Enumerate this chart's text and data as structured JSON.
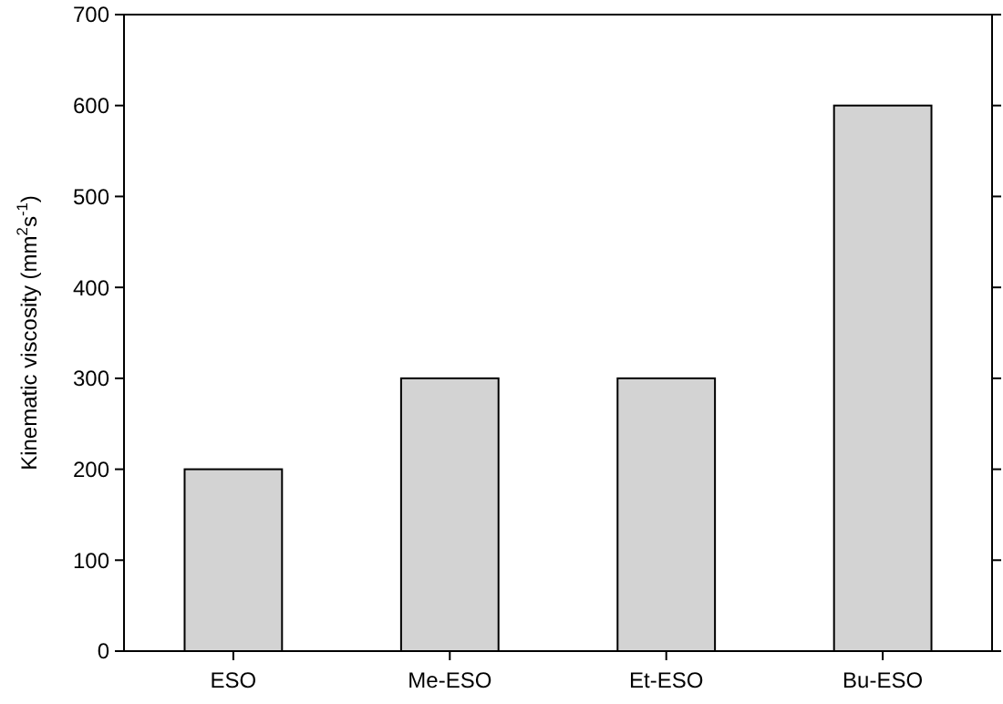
{
  "chart_data": {
    "type": "bar",
    "ylabel": "Kinematic viscosity (mm$^{2}$s$^{-1}$)",
    "categories": [
      "ESO",
      "Me-ESO",
      "Et-ESO",
      "Bu-ESO"
    ],
    "values": [
      200,
      300,
      300,
      600
    ],
    "color": "#d3d3d3",
    "ylim": [
      0,
      700
    ],
    "yticks": [
      0,
      100,
      200,
      300,
      400,
      500,
      600,
      700
    ],
    "grid": false
  }
}
